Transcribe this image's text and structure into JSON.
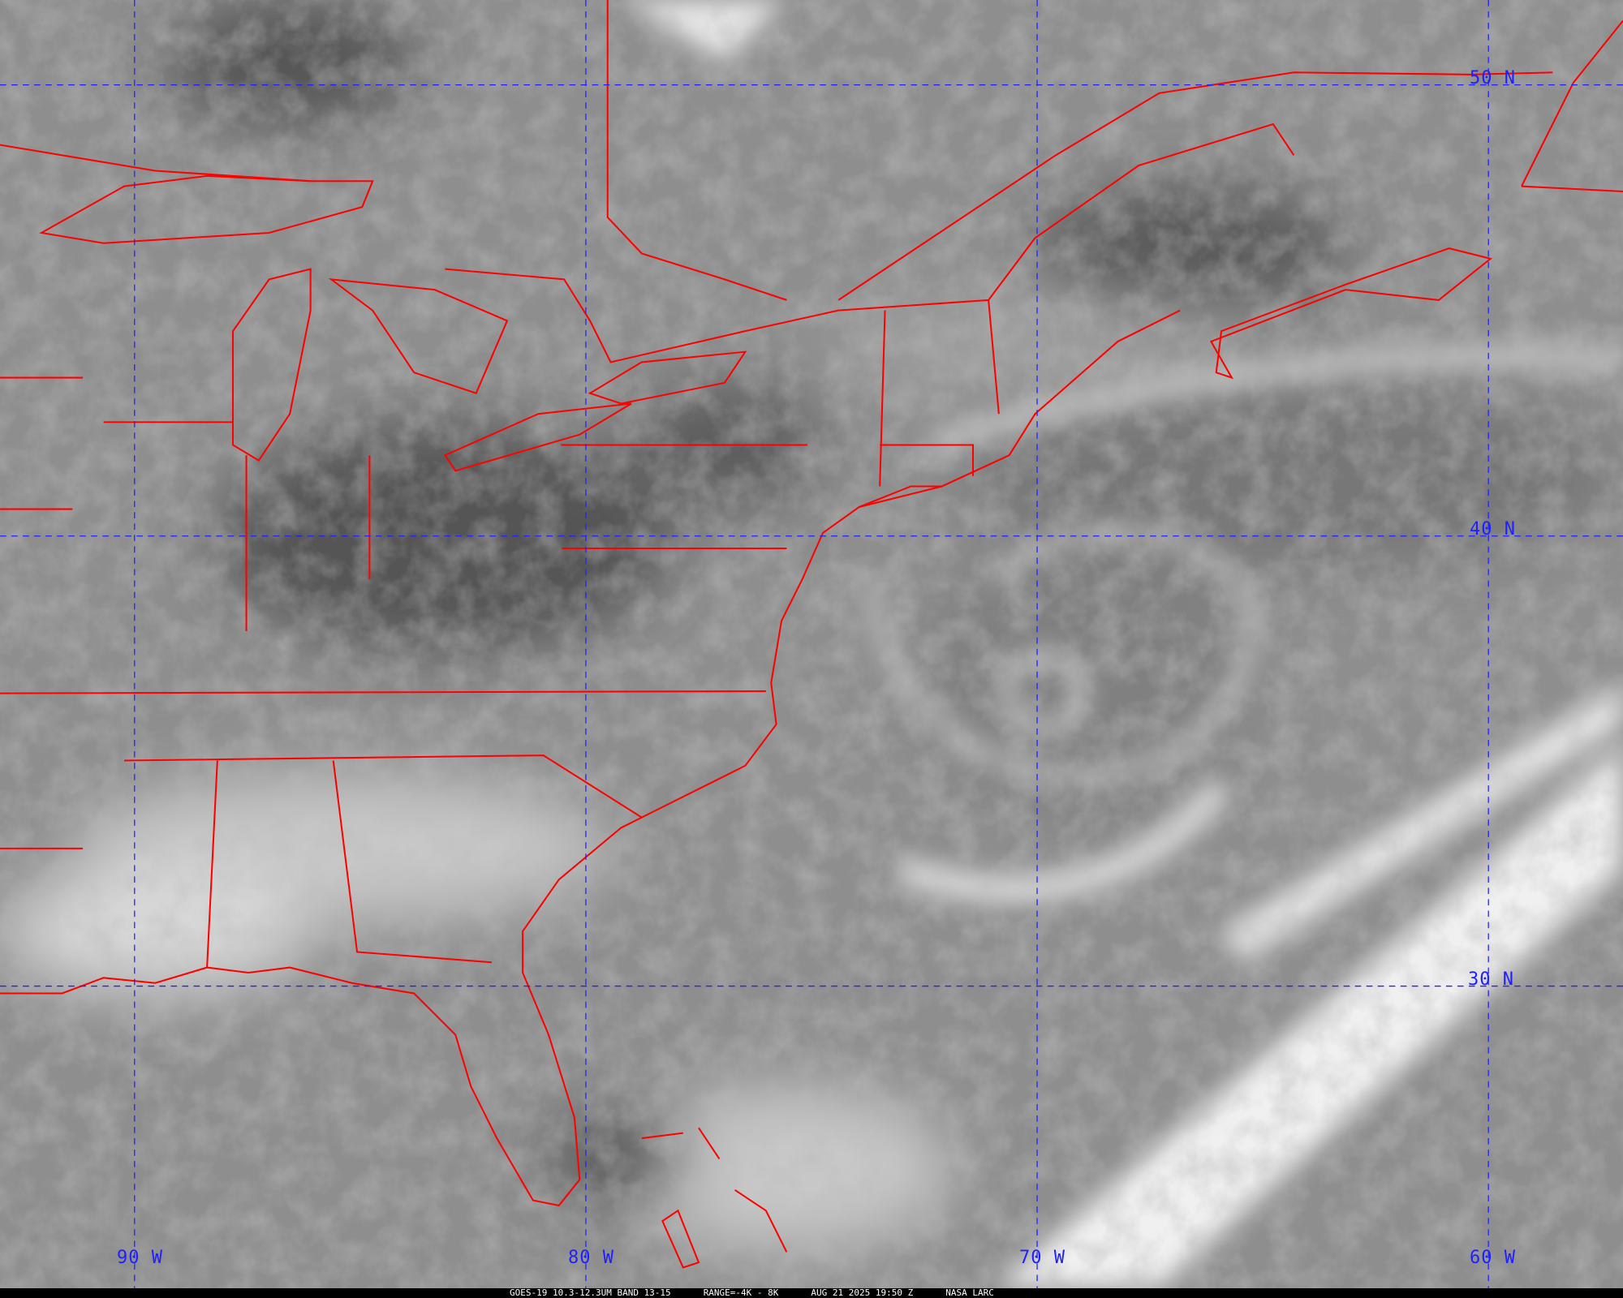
{
  "caption": {
    "satellite_band": "GOES-19 10.3-12.3UM BAND 13-15",
    "range": "RANGE=-4K - 8K",
    "datetime": "AUG 21 2025 19:50 Z",
    "credit": "NASA LARC"
  },
  "grid": {
    "latitude_labels": [
      "50 N",
      "40 N",
      "30 N"
    ],
    "longitude_labels": [
      "90 W",
      "80 W",
      "70 W",
      "60 W"
    ]
  },
  "colors": {
    "boundaries": "#ff0000",
    "grid": "#2020ff",
    "caption_bar": "#000000"
  }
}
